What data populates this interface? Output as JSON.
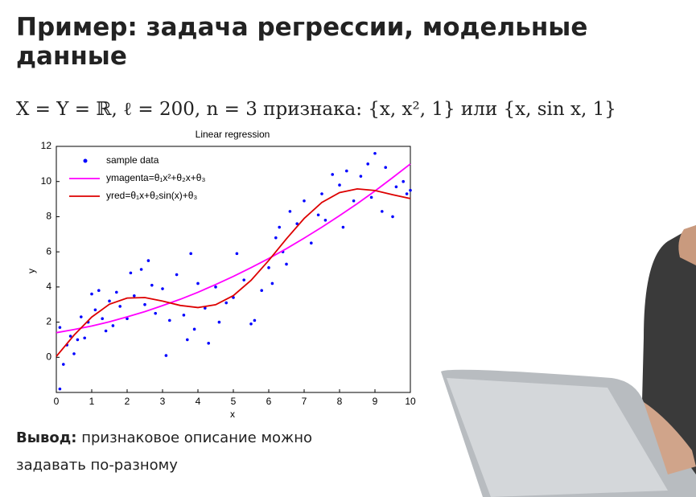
{
  "slide": {
    "title": "Пример: задача регрессии, модельные данные",
    "formula": "X = Y = ℝ,  ℓ = 200,  n = 3 признака: {x, x², 1} или {x, sin x, 1}",
    "conclusion": {
      "label": "Вывод:",
      "text": "признаковое описание можно задавать по-разному"
    }
  },
  "chart_data": {
    "type": "scatter",
    "title": "Linear regression",
    "x_label": "x",
    "y_label": "y",
    "xlim": [
      0,
      10
    ],
    "ylim": [
      -2,
      12
    ],
    "xticks": [
      0,
      1,
      2,
      3,
      4,
      5,
      6,
      7,
      8,
      9,
      10
    ],
    "yticks": [
      0,
      2,
      4,
      6,
      8,
      10,
      12
    ],
    "grid": false,
    "legend": "upper-left",
    "series": [
      {
        "name": "sample data",
        "color": "#0000ff",
        "style": "markers",
        "x": [
          0.1,
          0.1,
          0.2,
          0.3,
          0.4,
          0.5,
          0.6,
          0.7,
          0.8,
          0.9,
          1.0,
          1.1,
          1.2,
          1.3,
          1.4,
          1.5,
          1.6,
          1.7,
          1.8,
          2.0,
          2.1,
          2.2,
          2.4,
          2.5,
          2.6,
          2.7,
          2.8,
          3.0,
          3.1,
          3.2,
          3.4,
          3.6,
          3.7,
          3.8,
          3.9,
          4.0,
          4.2,
          4.3,
          4.5,
          4.6,
          4.8,
          5.0,
          5.1,
          5.3,
          5.5,
          5.6,
          5.8,
          6.0,
          6.1,
          6.2,
          6.3,
          6.4,
          6.5,
          6.6,
          6.8,
          7.0,
          7.2,
          7.4,
          7.5,
          7.6,
          7.8,
          8.0,
          8.1,
          8.2,
          8.4,
          8.6,
          8.8,
          8.9,
          9.0,
          9.2,
          9.3,
          9.5,
          9.6,
          9.8,
          9.9,
          10.0
        ],
        "values": [
          1.7,
          -1.8,
          -0.4,
          0.7,
          1.2,
          0.2,
          1.0,
          2.3,
          1.1,
          2.0,
          3.6,
          2.7,
          3.8,
          2.2,
          1.5,
          3.2,
          1.8,
          3.7,
          2.9,
          2.2,
          4.8,
          3.5,
          5.0,
          3.0,
          5.5,
          4.1,
          2.5,
          3.9,
          0.1,
          2.1,
          4.7,
          2.4,
          1.0,
          5.9,
          1.6,
          4.2,
          2.8,
          0.8,
          4.0,
          2.0,
          3.1,
          3.4,
          5.9,
          4.4,
          1.9,
          2.1,
          3.8,
          5.1,
          4.2,
          6.8,
          7.4,
          6.0,
          5.3,
          8.3,
          7.6,
          8.9,
          6.5,
          8.1,
          9.3,
          7.8,
          10.4,
          9.8,
          7.4,
          10.6,
          8.9,
          10.3,
          11.0,
          9.1,
          11.6,
          8.3,
          10.8,
          8.0,
          9.7,
          10.0,
          9.3,
          9.5
        ]
      },
      {
        "name": "ymagenta=θ₁x²+θ₂x+θ₃",
        "color": "#ff00ff",
        "style": "line",
        "x": [
          0,
          0.5,
          1,
          1.5,
          2,
          2.5,
          3,
          3.5,
          4,
          4.5,
          5,
          5.5,
          6,
          6.5,
          7,
          7.5,
          8,
          8.5,
          9,
          9.5,
          10
        ],
        "values": [
          1.4,
          1.58,
          1.78,
          2.02,
          2.3,
          2.6,
          2.94,
          3.3,
          3.7,
          4.14,
          4.6,
          5.1,
          5.62,
          6.18,
          6.78,
          7.4,
          8.06,
          8.74,
          9.46,
          10.22,
          11.0
        ]
      },
      {
        "name": "yred=θ₁x+θ₂sin(x)+θ₃",
        "color": "#dd0000",
        "style": "line",
        "x": [
          0,
          0.5,
          1,
          1.5,
          2,
          2.5,
          3,
          3.5,
          4,
          4.5,
          5,
          5.5,
          6,
          6.5,
          7,
          7.5,
          8,
          8.5,
          9,
          9.5,
          10
        ],
        "values": [
          0.05,
          1.26,
          2.29,
          3.02,
          3.37,
          3.4,
          3.2,
          2.95,
          2.83,
          2.99,
          3.51,
          4.38,
          5.51,
          6.74,
          7.9,
          8.81,
          9.37,
          9.58,
          9.49,
          9.25,
          9.03
        ]
      }
    ]
  }
}
